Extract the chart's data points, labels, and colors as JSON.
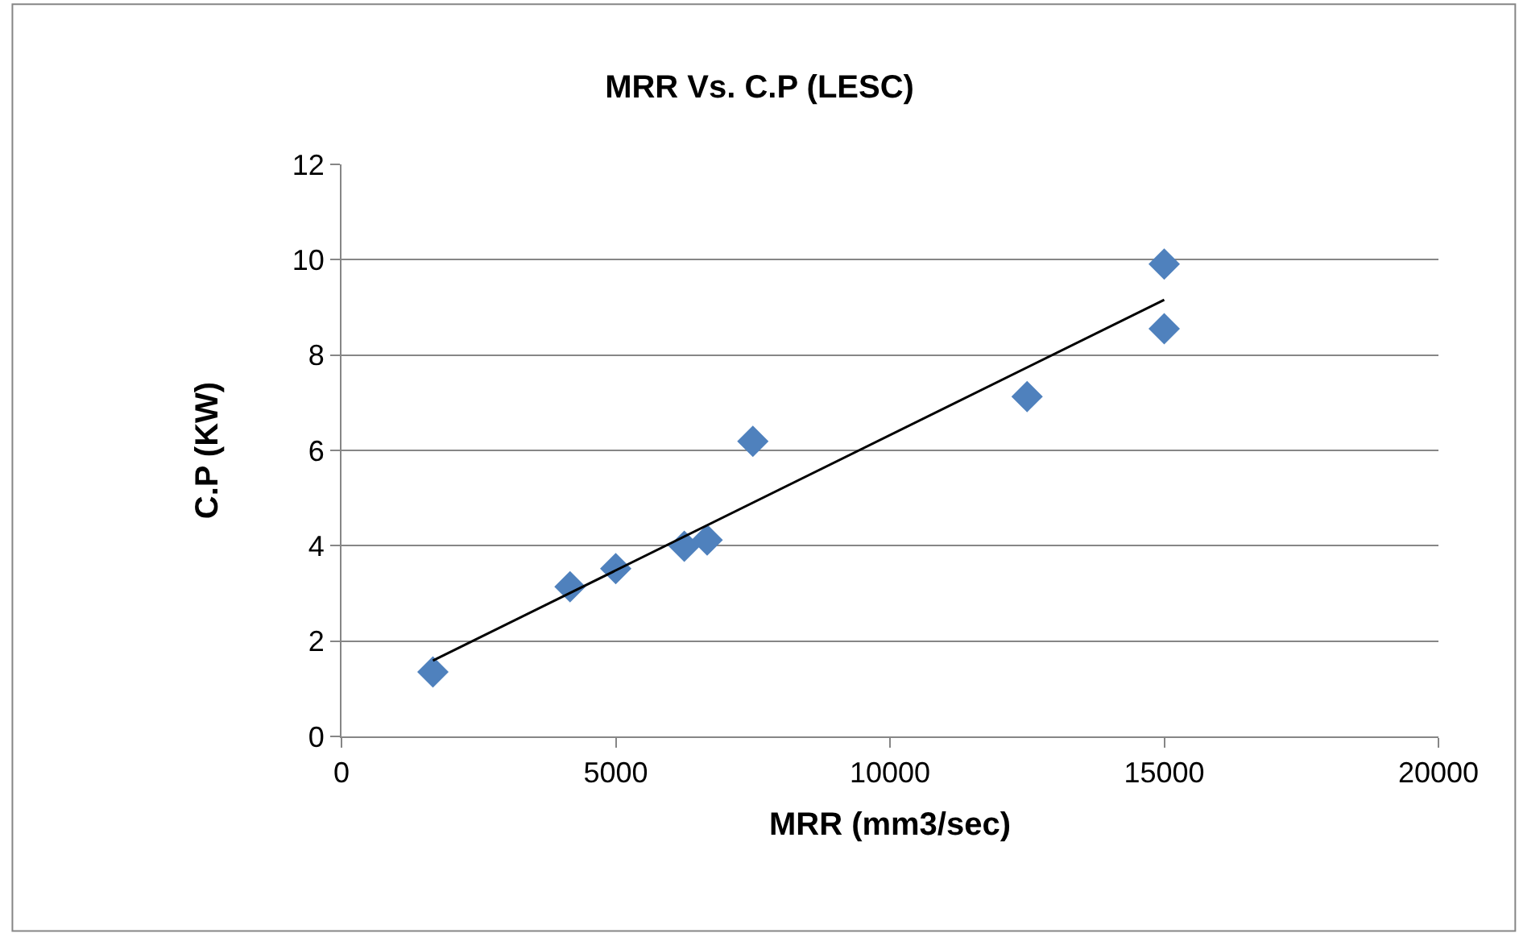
{
  "chart_data": {
    "type": "scatter",
    "title": "MRR Vs. C.P (LESC)",
    "xlabel": "MRR (mm3/sec)",
    "ylabel": "C.P (KW)",
    "series": [
      {
        "color": "#4f81bd",
        "marker": "diamond",
        "x": [
          1667,
          4167,
          5000,
          6250,
          6667,
          7500,
          12500,
          15000,
          15000
        ],
        "values": [
          1.35,
          3.14,
          3.52,
          3.99,
          4.12,
          6.19,
          7.13,
          8.55,
          9.91
        ]
      },
      {
        "type": "line",
        "color": "#000000",
        "marker": "none",
        "line_style": "solid",
        "x": [
          1667,
          15000
        ],
        "values": [
          1.59,
          9.16
        ]
      }
    ],
    "xlim": [
      0,
      20000
    ],
    "xticks": [
      0,
      5000,
      10000,
      15000,
      20000
    ],
    "ylim": [
      0,
      12
    ],
    "yticks": [
      0,
      2,
      4,
      6,
      8,
      10,
      12
    ],
    "grid": "y",
    "legend": false
  }
}
